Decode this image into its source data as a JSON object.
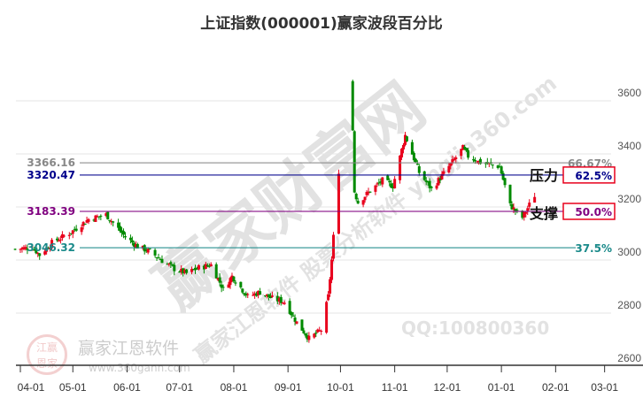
{
  "chart_data": {
    "type": "candlestick",
    "title": "上证指数(000001)赢家波段百分比",
    "ylim": [
      2600,
      3700
    ],
    "yticks": [
      2600,
      2800,
      3000,
      3200,
      3400,
      3600
    ],
    "xticks": [
      "04-01",
      "05-01",
      "06-01",
      "07-01",
      "08-01",
      "09-01",
      "10-01",
      "11-01",
      "12-01",
      "01-01",
      "02-01",
      "03-01"
    ],
    "grid": true,
    "colors": {
      "up": "#e8001c",
      "down": "#008a00"
    },
    "closes": [
      [
        "2024-03-29",
        3041
      ],
      [
        "2024-04-08",
        3048
      ],
      [
        "2024-04-12",
        3019
      ],
      [
        "2024-04-19",
        3065
      ],
      [
        "2024-04-30",
        3105
      ],
      [
        "2024-05-10",
        3154
      ],
      [
        "2024-05-20",
        3171
      ],
      [
        "2024-05-31",
        3087
      ],
      [
        "2024-06-07",
        3051
      ],
      [
        "2024-06-14",
        3032
      ],
      [
        "2024-06-21",
        2998
      ],
      [
        "2024-06-28",
        2967
      ],
      [
        "2024-07-05",
        2950
      ],
      [
        "2024-07-12",
        2971
      ],
      [
        "2024-07-19",
        2982
      ],
      [
        "2024-07-26",
        2890
      ],
      [
        "2024-07-31",
        2939
      ],
      [
        "2024-08-09",
        2862
      ],
      [
        "2024-08-16",
        2879
      ],
      [
        "2024-08-23",
        2855
      ],
      [
        "2024-08-30",
        2842
      ],
      [
        "2024-09-06",
        2765
      ],
      [
        "2024-09-13",
        2704
      ],
      [
        "2024-09-20",
        2736
      ],
      [
        "2024-09-24",
        2863
      ],
      [
        "2024-09-26",
        3000
      ],
      [
        "2024-09-27",
        3087
      ],
      [
        "2024-09-30",
        3336
      ],
      [
        "2024-10-08",
        3489
      ],
      [
        "2024-10-09",
        3258
      ],
      [
        "2024-10-11",
        3217
      ],
      [
        "2024-10-18",
        3261
      ],
      [
        "2024-10-25",
        3300
      ],
      [
        "2024-10-31",
        3279
      ],
      [
        "2024-11-07",
        3470
      ],
      [
        "2024-11-15",
        3330
      ],
      [
        "2024-11-22",
        3267
      ],
      [
        "2024-11-29",
        3326
      ],
      [
        "2024-12-10",
        3422
      ],
      [
        "2024-12-13",
        3391
      ],
      [
        "2024-12-20",
        3368
      ],
      [
        "2024-12-31",
        3352
      ],
      [
        "2025-01-06",
        3206
      ],
      [
        "2025-01-13",
        3160
      ],
      [
        "2025-01-20",
        3244
      ]
    ],
    "levels": [
      {
        "value": "3366.16",
        "pct": "66.67%",
        "color": "#888888",
        "boxed": false
      },
      {
        "value": "3320.47",
        "pct": "62.5%",
        "color": "#00008b",
        "boxed": true,
        "note": "压力"
      },
      {
        "value": "3183.39",
        "pct": "50.0%",
        "color": "#800080",
        "boxed": true,
        "note": "支撑"
      },
      {
        "value": "3046.32",
        "pct": "37.5%",
        "color": "#1a8a8a",
        "boxed": false
      }
    ]
  },
  "watermarks": {
    "big": "赢家财富网",
    "diag": "赢家江恩软件 股票分析软件 yingjia360.com",
    "qq": "QQ:100800360",
    "logo_text": "赢家江恩软件",
    "logo_seal": "江赢恩家",
    "site": "www.360gann.com"
  }
}
